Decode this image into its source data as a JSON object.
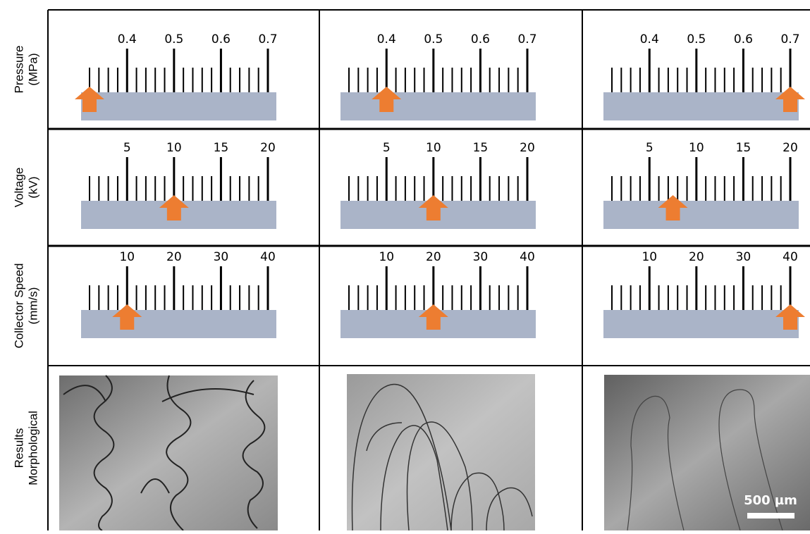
{
  "rows": [
    {
      "label": [
        "Pressure",
        "(MPa)"
      ],
      "ticks": [
        0.4,
        0.5,
        0.6,
        0.7
      ],
      "arrows": [
        0.32,
        0.4,
        0.7
      ]
    },
    {
      "label": [
        "Voltage",
        "(kV)"
      ],
      "ticks": [
        5,
        10,
        15,
        20
      ],
      "arrows": [
        10,
        10,
        7.5
      ]
    },
    {
      "label": [
        "Collector Speed",
        "(mm/s)"
      ],
      "ticks": [
        10,
        20,
        30,
        40
      ],
      "arrows": [
        10,
        20,
        40
      ]
    }
  ],
  "results_label": [
    "Results",
    "Morphological"
  ],
  "scale_bar": "500 µm"
}
